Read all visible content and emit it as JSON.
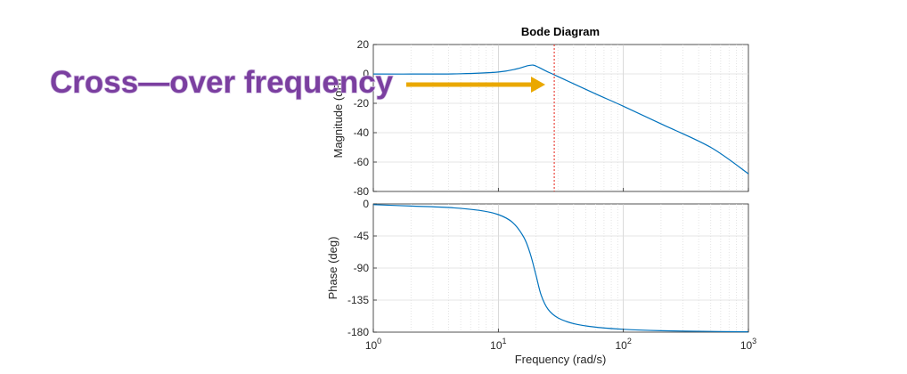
{
  "chart_data": {
    "type": "line",
    "title": "Bode Diagram",
    "xlabel": "Frequency  (rad/s)",
    "x_scale": "log",
    "xlim": [
      1,
      1000
    ],
    "x_ticks": [
      {
        "value": 1,
        "base": "10",
        "exp": "0"
      },
      {
        "value": 10,
        "base": "10",
        "exp": "1"
      },
      {
        "value": 100,
        "base": "10",
        "exp": "2"
      },
      {
        "value": 1000,
        "base": "10",
        "exp": "3"
      }
    ],
    "grid": true,
    "subplots": [
      {
        "id": "magnitude",
        "ylabel": "Magnitude (dB)",
        "ylim": [
          -80,
          20
        ],
        "y_ticks": [
          "20",
          "0",
          "-20",
          "-40",
          "-60",
          "-80"
        ],
        "y_tick_values": [
          20,
          0,
          -20,
          -40,
          -60,
          -80
        ],
        "x": [
          1,
          2,
          5,
          10,
          14,
          17,
          19,
          21,
          24,
          27,
          30,
          40,
          60,
          100,
          200,
          500,
          1000
        ],
        "y": [
          -0.1,
          -0.1,
          0.1,
          1.3,
          3.4,
          5.5,
          6.0,
          4.5,
          2.0,
          0.0,
          -1.8,
          -6.7,
          -13.6,
          -22.0,
          -34.0,
          -50.0,
          -68.0
        ]
      },
      {
        "id": "phase",
        "ylabel": "Phase (deg)",
        "ylim": [
          -180,
          0
        ],
        "y_ticks": [
          "0",
          "-45",
          "-90",
          "-135",
          "-180"
        ],
        "y_tick_values": [
          0,
          -45,
          -90,
          -135,
          -180
        ],
        "x": [
          1,
          2,
          4,
          7,
          10,
          13,
          16,
          18,
          20,
          22,
          25,
          30,
          40,
          60,
          100,
          200,
          500,
          1000
        ],
        "y": [
          -1,
          -3,
          -5,
          -9,
          -15,
          -26,
          -47,
          -70,
          -100,
          -128,
          -148,
          -160,
          -168,
          -173,
          -176,
          -178,
          -179,
          -179.5
        ]
      }
    ],
    "crossover_frequency": 28,
    "colors": {
      "line": "#0072bd",
      "crossover_line": "#e8443a",
      "arrow": "#eaa800",
      "annotation_text": "#7b3fa0"
    }
  },
  "annotation": {
    "text": "Cross—over frequency"
  }
}
